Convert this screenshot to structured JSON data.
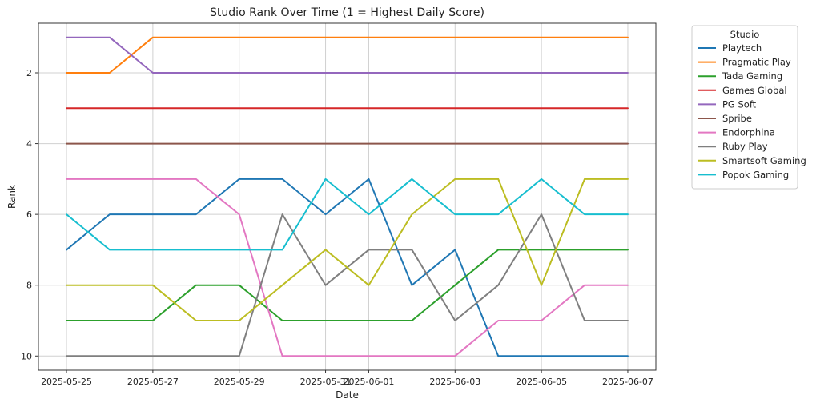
{
  "chart_data": {
    "type": "line",
    "title": "Studio Rank Over Time (1 = Highest Daily Score)",
    "xlabel": "Date",
    "ylabel": "Rank",
    "y_inverted": true,
    "ylim": [
      10.4,
      0.6
    ],
    "yticks": [
      2,
      4,
      6,
      8,
      10
    ],
    "grid": true,
    "legend_title": "Studio",
    "legend_position": "outside-right-top",
    "x": [
      "2025-05-25",
      "2025-05-26",
      "2025-05-27",
      "2025-05-28",
      "2025-05-29",
      "2025-05-30",
      "2025-05-31",
      "2025-06-01",
      "2025-06-02",
      "2025-06-03",
      "2025-06-04",
      "2025-06-05",
      "2025-06-06",
      "2025-06-07"
    ],
    "xticks": [
      "2025-05-25",
      "2025-05-27",
      "2025-05-29",
      "2025-05-31",
      "2025-06-01",
      "2025-06-03",
      "2025-06-05",
      "2025-06-07"
    ],
    "series": [
      {
        "name": "Playtech",
        "color": "#1f77b4",
        "values": [
          7,
          6,
          6,
          6,
          5,
          5,
          6,
          5,
          8,
          7,
          10,
          10,
          10,
          10
        ]
      },
      {
        "name": "Pragmatic Play",
        "color": "#ff7f0e",
        "values": [
          2,
          2,
          1,
          1,
          1,
          1,
          1,
          1,
          1,
          1,
          1,
          1,
          1,
          1
        ]
      },
      {
        "name": "Tada Gaming",
        "color": "#2ca02c",
        "values": [
          9,
          9,
          9,
          8,
          8,
          9,
          9,
          9,
          9,
          8,
          7,
          7,
          7,
          7
        ]
      },
      {
        "name": "Games Global",
        "color": "#d62728",
        "values": [
          3,
          3,
          3,
          3,
          3,
          3,
          3,
          3,
          3,
          3,
          3,
          3,
          3,
          3
        ]
      },
      {
        "name": "PG Soft",
        "color": "#9467bd",
        "values": [
          1,
          1,
          2,
          2,
          2,
          2,
          2,
          2,
          2,
          2,
          2,
          2,
          2,
          2
        ]
      },
      {
        "name": "Spribe",
        "color": "#8c564b",
        "values": [
          4,
          4,
          4,
          4,
          4,
          4,
          4,
          4,
          4,
          4,
          4,
          4,
          4,
          4
        ]
      },
      {
        "name": "Endorphina",
        "color": "#e377c2",
        "values": [
          5,
          5,
          5,
          5,
          6,
          10,
          10,
          10,
          10,
          10,
          9,
          9,
          8,
          8
        ]
      },
      {
        "name": "Ruby Play",
        "color": "#7f7f7f",
        "values": [
          10,
          10,
          10,
          10,
          10,
          6,
          8,
          7,
          7,
          9,
          8,
          6,
          9,
          9
        ]
      },
      {
        "name": "Smartsoft Gaming",
        "color": "#bcbd22",
        "values": [
          8,
          8,
          8,
          9,
          9,
          8,
          7,
          8,
          6,
          5,
          5,
          8,
          5,
          5
        ]
      },
      {
        "name": "Popok Gaming",
        "color": "#17becf",
        "values": [
          6,
          7,
          7,
          7,
          7,
          7,
          5,
          6,
          5,
          6,
          6,
          5,
          6,
          6
        ]
      }
    ]
  }
}
